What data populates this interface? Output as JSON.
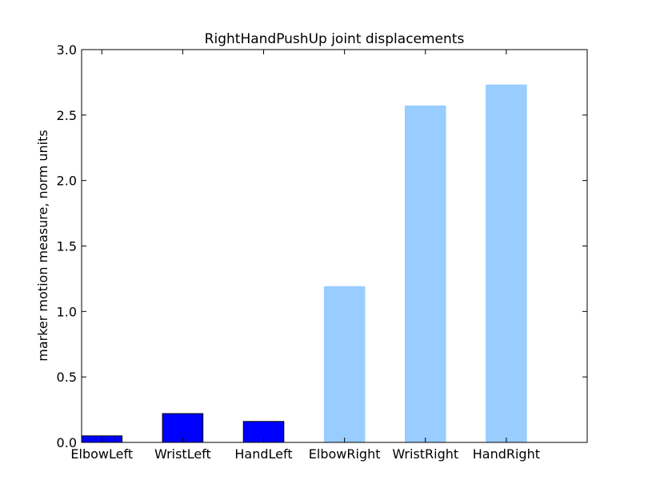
{
  "chart_data": {
    "type": "bar",
    "title": "RightHandPushUp joint displacements",
    "xlabel": "",
    "ylabel": "marker motion measure,  norm units",
    "categories": [
      "ElbowLeft",
      "WristLeft",
      "HandLeft",
      "ElbowRight",
      "WristRight",
      "HandRight"
    ],
    "values": [
      0.05,
      0.22,
      0.16,
      1.19,
      2.57,
      2.73
    ],
    "bar_colors": [
      "#0000ff",
      "#0000ff",
      "#0000ff",
      "#99ccff",
      "#99ccff",
      "#99ccff"
    ],
    "bar_edge_colors": [
      "#000000",
      "#000000",
      "#000000",
      "#99ccff",
      "#99ccff",
      "#99ccff"
    ],
    "ylim": [
      0,
      3.0
    ],
    "yticks": [
      0.0,
      0.5,
      1.0,
      1.5,
      2.0,
      2.5,
      3.0
    ],
    "ytick_labels": [
      "0.0",
      "0.5",
      "1.0",
      "1.5",
      "2.0",
      "2.5",
      "3.0"
    ],
    "grid": false
  }
}
